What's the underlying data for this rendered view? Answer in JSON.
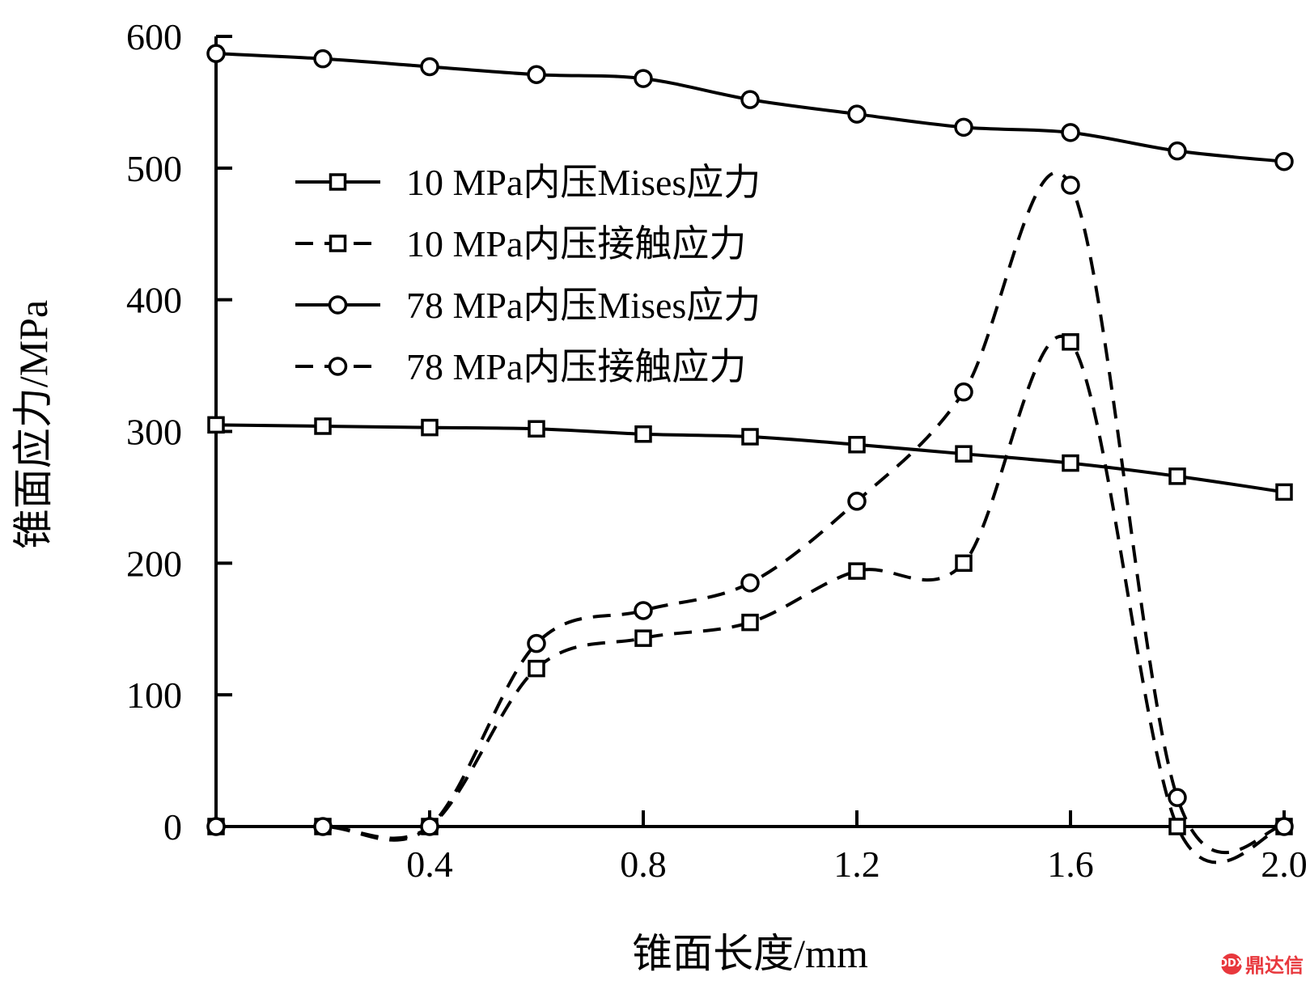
{
  "chart_data": {
    "type": "line",
    "xlabel": "锥面长度/mm",
    "ylabel": "锥面应力/MPa",
    "xlim": [
      0,
      2.0
    ],
    "ylim": [
      0,
      600
    ],
    "x_ticks": [
      0.4,
      0.8,
      1.2,
      1.6,
      2.0
    ],
    "x_tick_labels": [
      "0.4",
      "0.8",
      "1.2",
      "1.6",
      "2.0"
    ],
    "y_ticks": [
      0,
      100,
      200,
      300,
      400,
      500,
      600
    ],
    "y_tick_labels": [
      "0",
      "100",
      "200",
      "300",
      "400",
      "500",
      "600"
    ],
    "legend_position": "upper-left",
    "grid": false,
    "x": [
      0,
      0.2,
      0.4,
      0.6,
      0.8,
      1.0,
      1.2,
      1.4,
      1.6,
      1.8,
      2.0
    ],
    "series": [
      {
        "name": "10 MPa内压Mises应力",
        "line": "solid",
        "marker": "square",
        "values": [
          305,
          304,
          303,
          302,
          298,
          296,
          290,
          283,
          276,
          266,
          254
        ]
      },
      {
        "name": "10 MPa内压接触应力",
        "line": "dashed",
        "marker": "square",
        "values": [
          0,
          0,
          0,
          120,
          143,
          155,
          194,
          200,
          368,
          0,
          0
        ]
      },
      {
        "name": "78 MPa内压Mises应力",
        "line": "solid",
        "marker": "circle",
        "values": [
          587,
          583,
          577,
          571,
          568,
          552,
          541,
          531,
          527,
          513,
          505
        ]
      },
      {
        "name": "78 MPa内压接触应力",
        "line": "dashed",
        "marker": "circle",
        "values": [
          0,
          0,
          0,
          139,
          164,
          185,
          247,
          330,
          487,
          22,
          0
        ]
      }
    ]
  },
  "watermark": {
    "text": "鼎达信",
    "logo": "DDX"
  }
}
